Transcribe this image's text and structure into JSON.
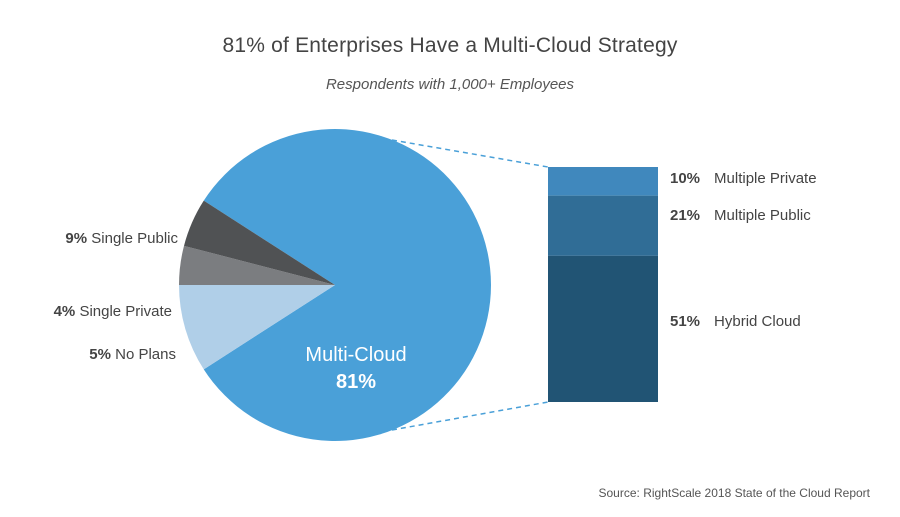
{
  "chart_data": [
    {
      "type": "pie",
      "title": "81% of Enterprises Have a Multi-Cloud Strategy",
      "subtitle": "Respondents with 1,000+ Employees",
      "slices": [
        {
          "label": "Multi-Cloud",
          "pct_text": "81%",
          "value": 81,
          "color": "#4aa0d8"
        },
        {
          "label": "Single Public",
          "pct_text": "9%",
          "value": 9,
          "color": "#b0cfe8"
        },
        {
          "label": "Single Private",
          "pct_text": "4%",
          "value": 4,
          "color": "#7b7d80"
        },
        {
          "label": "No Plans",
          "pct_text": "5%",
          "value": 5,
          "color": "#505254"
        }
      ]
    },
    {
      "type": "bar",
      "stacked": true,
      "segments": [
        {
          "label": "Multiple Private",
          "pct_text": "10%",
          "value": 10,
          "color": "#4088bd"
        },
        {
          "label": "Multiple Public",
          "pct_text": "21%",
          "value": 21,
          "color": "#306d96"
        },
        {
          "label": "Hybrid Cloud",
          "pct_text": "51%",
          "value": 51,
          "color": "#215474"
        }
      ]
    }
  ],
  "source": "Source: RightScale 2018 State of the Cloud Report",
  "connector_color": "#4aa0d8"
}
